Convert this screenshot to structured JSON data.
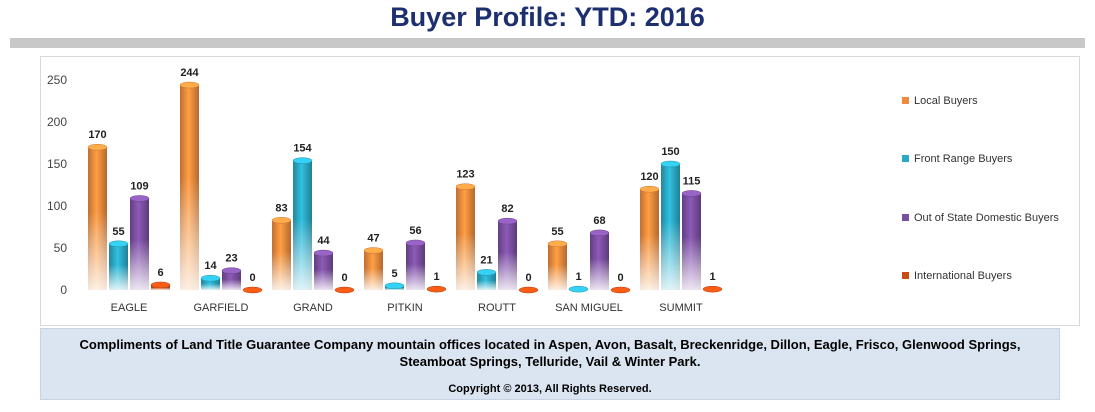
{
  "title": "Buyer Profile: YTD: 2016",
  "chart_data": {
    "type": "bar",
    "categories": [
      "EAGLE",
      "GARFIELD",
      "GRAND",
      "PITKIN",
      "ROUTT",
      "SAN MIGUEL",
      "SUMMIT"
    ],
    "series": [
      {
        "name": "Local Buyers",
        "color": "#f08a3c",
        "values": [
          170,
          244,
          83,
          47,
          123,
          55,
          120
        ]
      },
      {
        "name": "Front Range Buyers",
        "color": "#2aa8c4",
        "values": [
          55,
          14,
          154,
          5,
          21,
          1,
          150
        ]
      },
      {
        "name": "Out of State Domestic Buyers",
        "color": "#7b4fa0",
        "values": [
          109,
          23,
          44,
          56,
          82,
          68,
          115
        ]
      },
      {
        "name": "International Buyers",
        "color": "#c94a12",
        "values": [
          6,
          0,
          0,
          1,
          0,
          0,
          1
        ]
      }
    ],
    "ylim": [
      0,
      250
    ],
    "yticks": [
      0,
      50,
      100,
      150,
      200,
      250
    ],
    "legend_position": "right",
    "grid": false
  },
  "footer": {
    "text": "Compliments of Land Title Guarantee Company mountain offices located in Aspen, Avon, Basalt, Breckenridge, Dillon, Eagle, Frisco, Glenwood Springs, Steamboat Springs, Telluride, Vail & Winter Park.",
    "copyright": "Copyright © 2013, All Rights Reserved."
  }
}
